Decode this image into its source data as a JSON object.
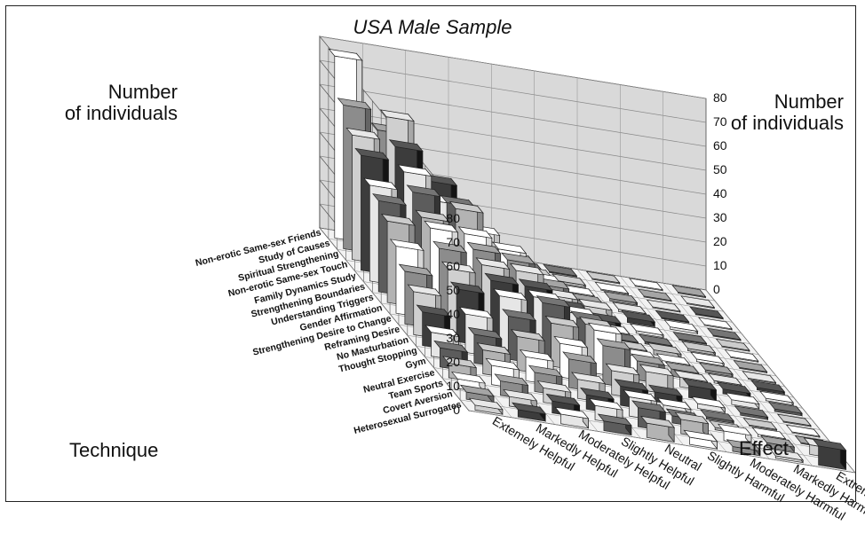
{
  "chart_data": {
    "type": "bar3d",
    "title": "USA Male Sample",
    "zlabel": "Number\nof individuals",
    "zlim": [
      0,
      80
    ],
    "zticks": [
      "0",
      "10",
      "20",
      "30",
      "40",
      "50",
      "60",
      "70",
      "80"
    ],
    "technique_axis_title": "Technique",
    "effect_axis_title": "Effect",
    "techniques": [
      "Non-erotic Same-sex Friends",
      "Study of Causes",
      "Spiritual Strengthening",
      "Non-erotic Same-sex Touch",
      "Family Dynamics Study",
      "Strengthening Boundaries",
      "Understanding Triggers",
      "Gender Affirmation",
      "Strengthening Desire to Change",
      "Reframing Desire",
      "No Masturbation",
      "Thought Stopping",
      "Gym",
      "Neutral Exercise",
      "Team Sports",
      "Covert Aversion",
      "Heterosexual Surrogates"
    ],
    "effects": [
      "Extemely Helpful",
      "Markedly Helpful",
      "Moderately Helpful",
      "Slightly Helpful",
      "Neutral",
      "Slightly Harmful",
      "Moderately Harmful",
      "Markedly Harmful",
      "Extremely Harmful"
    ],
    "values": [
      [
        76,
        48,
        30,
        10,
        3,
        0,
        0,
        0,
        0
      ],
      [
        60,
        58,
        34,
        16,
        4,
        1,
        0,
        0,
        0
      ],
      [
        52,
        50,
        30,
        14,
        6,
        1,
        1,
        0,
        0
      ],
      [
        48,
        44,
        34,
        18,
        8,
        2,
        1,
        0,
        0
      ],
      [
        40,
        40,
        36,
        22,
        10,
        4,
        2,
        1,
        0
      ],
      [
        38,
        34,
        30,
        22,
        10,
        3,
        1,
        0,
        0
      ],
      [
        34,
        34,
        28,
        22,
        10,
        3,
        1,
        1,
        0
      ],
      [
        28,
        30,
        26,
        20,
        12,
        4,
        2,
        1,
        0
      ],
      [
        22,
        26,
        24,
        20,
        14,
        5,
        2,
        1,
        0
      ],
      [
        18,
        22,
        22,
        22,
        16,
        6,
        3,
        1,
        1
      ],
      [
        14,
        16,
        18,
        18,
        18,
        8,
        4,
        2,
        1
      ],
      [
        10,
        12,
        14,
        14,
        16,
        8,
        5,
        2,
        1
      ],
      [
        8,
        10,
        10,
        12,
        10,
        4,
        2,
        1,
        0
      ],
      [
        6,
        8,
        8,
        8,
        8,
        3,
        1,
        0,
        0
      ],
      [
        4,
        6,
        6,
        6,
        8,
        3,
        1,
        1,
        0
      ],
      [
        3,
        4,
        5,
        6,
        8,
        6,
        4,
        2,
        4
      ],
      [
        2,
        3,
        4,
        4,
        6,
        3,
        2,
        1,
        8
      ]
    ],
    "grid": true
  }
}
